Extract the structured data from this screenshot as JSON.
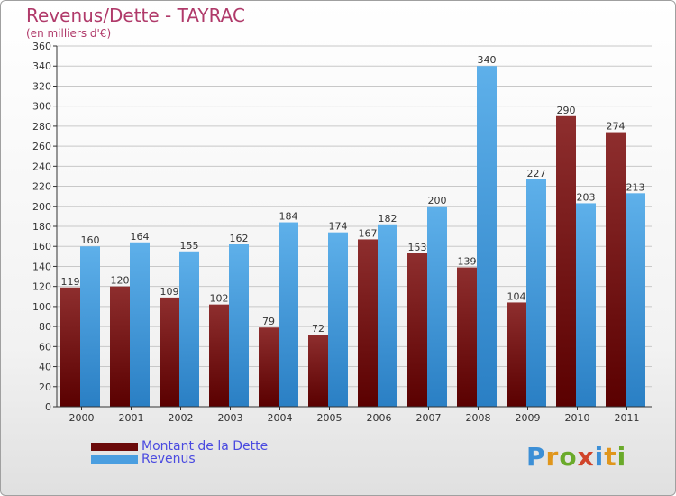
{
  "header": {
    "title": "Revenus/Dette - TAYRAC",
    "subtitle": "(en milliers d'€)"
  },
  "legend": {
    "items": [
      {
        "label": "Montant de la Dette",
        "color": "#6b0a0a"
      },
      {
        "label": "Revenus",
        "color": "#4a9ee0"
      }
    ]
  },
  "logo": {
    "text": "Proxiti"
  },
  "colors": {
    "debt_top": "#8e2e2e",
    "debt_bottom": "#5a0000",
    "rev_top": "#5eb0ea",
    "rev_bottom": "#2a7fc4",
    "axis": "#333333",
    "grid": "#c8c8c8",
    "label": "#333333"
  },
  "chart_data": {
    "type": "bar",
    "categories": [
      "2000",
      "2001",
      "2002",
      "2003",
      "2004",
      "2005",
      "2006",
      "2007",
      "2008",
      "2009",
      "2010",
      "2011"
    ],
    "series": [
      {
        "name": "Montant de la Dette",
        "values": [
          119,
          120,
          109,
          102,
          79,
          72,
          167,
          153,
          139,
          104,
          290,
          274
        ]
      },
      {
        "name": "Revenus",
        "values": [
          160,
          164,
          155,
          162,
          184,
          174,
          182,
          200,
          340,
          227,
          203,
          213
        ]
      }
    ],
    "ylim": [
      0,
      360
    ],
    "yticks": [
      0,
      20,
      40,
      60,
      80,
      100,
      120,
      140,
      160,
      180,
      200,
      220,
      240,
      260,
      280,
      300,
      320,
      340,
      360
    ],
    "grid": true,
    "legend_position": "bottom-left"
  }
}
